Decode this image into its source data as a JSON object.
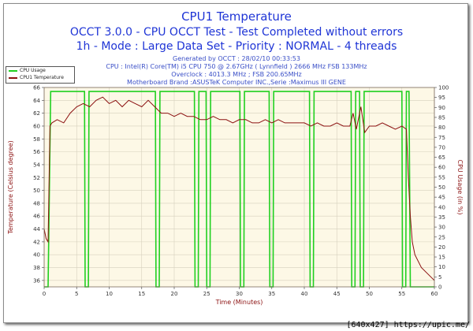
{
  "titles": {
    "line1": "CPU1 Temperature",
    "line2": "OCCT 3.0.0 - CPU OCCT Test - Test Completed without errors",
    "line3": "1h - Mode : Large Data Set - Priority : NORMAL - 4 threads"
  },
  "info": {
    "generated": "Generated by OCCT : 28/02/10 00:33:53",
    "cpu": "CPU : Intel(R) Core(TM) i5 CPU 750 @ 2.67GHz ( Lynnfield ) 2666 MHz FSB 133MHz",
    "overclock": "Overclock : 4013.3 MHz ; FSB 200.65MHz",
    "motherboard": "Motherboard Brand :ASUSTeK Computer INC.,Serie :Maximus III GENE"
  },
  "watermark": "[640x427] https://upic.me/",
  "chart_data": {
    "type": "line",
    "xlabel": "Time (Minutes)",
    "ylabel_left": "Temperature (Celsius degree)",
    "ylabel_right": "CPU Usage (in %)",
    "xlim": [
      0,
      60
    ],
    "ylim_left": [
      35,
      66
    ],
    "ylim_right": [
      0,
      100
    ],
    "x_ticks": [
      0,
      5,
      10,
      15,
      20,
      25,
      30,
      35,
      40,
      45,
      50,
      55,
      60
    ],
    "y_left_ticks": [
      36,
      38,
      40,
      42,
      44,
      46,
      48,
      50,
      52,
      54,
      56,
      58,
      60,
      62,
      64,
      66
    ],
    "y_right_ticks": [
      0,
      5,
      10,
      15,
      20,
      25,
      30,
      35,
      40,
      45,
      50,
      55,
      60,
      65,
      70,
      75,
      80,
      85,
      90,
      95,
      100
    ],
    "legend_position": "top-left",
    "grid": true,
    "colors": {
      "cpu_usage": "#20d020",
      "temperature": "#8b1010",
      "axes_left": "#8b1010",
      "axes_right": "#8b1010",
      "plot_bg": "#fdf8e6"
    },
    "series": [
      {
        "name": "CPU Usage",
        "axis": "right",
        "points": [
          [
            0,
            0
          ],
          [
            0.6,
            0
          ],
          [
            1.0,
            98
          ],
          [
            6.2,
            98
          ],
          [
            6.3,
            0
          ],
          [
            6.8,
            0
          ],
          [
            6.9,
            98
          ],
          [
            17.1,
            98
          ],
          [
            17.2,
            0
          ],
          [
            17.7,
            0
          ],
          [
            17.8,
            98
          ],
          [
            23.1,
            98
          ],
          [
            23.2,
            0
          ],
          [
            23.7,
            0
          ],
          [
            23.8,
            98
          ],
          [
            24.9,
            98
          ],
          [
            25.0,
            0
          ],
          [
            25.5,
            0
          ],
          [
            25.6,
            98
          ],
          [
            30.1,
            98
          ],
          [
            30.2,
            0
          ],
          [
            30.7,
            0
          ],
          [
            30.8,
            98
          ],
          [
            34.6,
            98
          ],
          [
            34.7,
            0
          ],
          [
            35.2,
            0
          ],
          [
            35.3,
            98
          ],
          [
            40.8,
            98
          ],
          [
            40.9,
            0
          ],
          [
            41.4,
            0
          ],
          [
            41.5,
            98
          ],
          [
            47.2,
            98
          ],
          [
            47.3,
            0
          ],
          [
            47.8,
            0
          ],
          [
            47.9,
            98
          ],
          [
            48.5,
            98
          ],
          [
            48.6,
            0
          ],
          [
            49.1,
            0
          ],
          [
            49.2,
            98
          ],
          [
            55.0,
            98
          ],
          [
            55.1,
            0
          ],
          [
            55.6,
            0
          ],
          [
            55.7,
            98
          ],
          [
            56.1,
            98
          ],
          [
            56.3,
            0
          ],
          [
            60,
            0
          ]
        ]
      },
      {
        "name": "CPU1 Temperature",
        "axis": "left",
        "points": [
          [
            0,
            44
          ],
          [
            0.3,
            42.5
          ],
          [
            0.6,
            42
          ],
          [
            0.9,
            60
          ],
          [
            1.2,
            60.5
          ],
          [
            2,
            61
          ],
          [
            3,
            60.5
          ],
          [
            4,
            62
          ],
          [
            5,
            63
          ],
          [
            6,
            63.5
          ],
          [
            7,
            63
          ],
          [
            8,
            64
          ],
          [
            9,
            64.5
          ],
          [
            10,
            63.5
          ],
          [
            11,
            64
          ],
          [
            12,
            63
          ],
          [
            13,
            64
          ],
          [
            14,
            63.5
          ],
          [
            15,
            63
          ],
          [
            16,
            64
          ],
          [
            17,
            63
          ],
          [
            18,
            62
          ],
          [
            19,
            62
          ],
          [
            20,
            61.5
          ],
          [
            21,
            62
          ],
          [
            22,
            61.5
          ],
          [
            23,
            61.5
          ],
          [
            24,
            61
          ],
          [
            25,
            61
          ],
          [
            26,
            61.5
          ],
          [
            27,
            61
          ],
          [
            28,
            61
          ],
          [
            29,
            60.5
          ],
          [
            30,
            61
          ],
          [
            31,
            61
          ],
          [
            32,
            60.5
          ],
          [
            33,
            60.5
          ],
          [
            34,
            61
          ],
          [
            35,
            60.5
          ],
          [
            36,
            61
          ],
          [
            37,
            60.5
          ],
          [
            38,
            60.5
          ],
          [
            39,
            60.5
          ],
          [
            40,
            60.5
          ],
          [
            41,
            60
          ],
          [
            42,
            60.5
          ],
          [
            43,
            60
          ],
          [
            44,
            60
          ],
          [
            45,
            60.5
          ],
          [
            46,
            60
          ],
          [
            47,
            60
          ],
          [
            47.5,
            62
          ],
          [
            48,
            59.5
          ],
          [
            48.7,
            63
          ],
          [
            49.3,
            59
          ],
          [
            50,
            60
          ],
          [
            51,
            60
          ],
          [
            52,
            60.5
          ],
          [
            53,
            60
          ],
          [
            54,
            59.5
          ],
          [
            55,
            60
          ],
          [
            55.7,
            59.5
          ],
          [
            56.0,
            52
          ],
          [
            56.3,
            46
          ],
          [
            56.6,
            42
          ],
          [
            57,
            40
          ],
          [
            58,
            38
          ],
          [
            59,
            37
          ],
          [
            60,
            36
          ]
        ]
      }
    ]
  }
}
